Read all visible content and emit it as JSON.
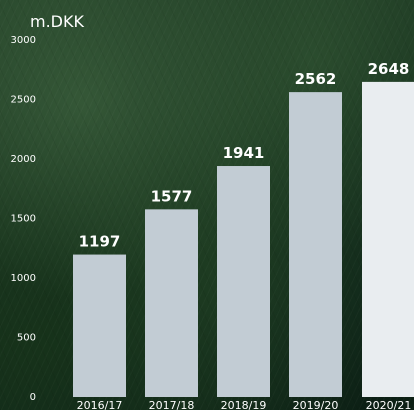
{
  "chart_data": {
    "type": "bar",
    "ylabel": "m.DKK",
    "categories": [
      "2016/17",
      "2017/18",
      "2018/19",
      "2019/20",
      "2020/21"
    ],
    "values": [
      1197,
      1577,
      1941,
      2562,
      2648
    ],
    "ylim": [
      0,
      3000
    ],
    "yticks": [
      0,
      500,
      1000,
      1500,
      2000,
      2500,
      3000
    ],
    "data_labels": [
      "1197",
      "1577",
      "1941",
      "2562",
      "2648"
    ],
    "grid": false,
    "colors": {
      "bar": "#c2ccd4",
      "bar_highlight": "#e9edf0",
      "text": "#ffffff"
    }
  }
}
